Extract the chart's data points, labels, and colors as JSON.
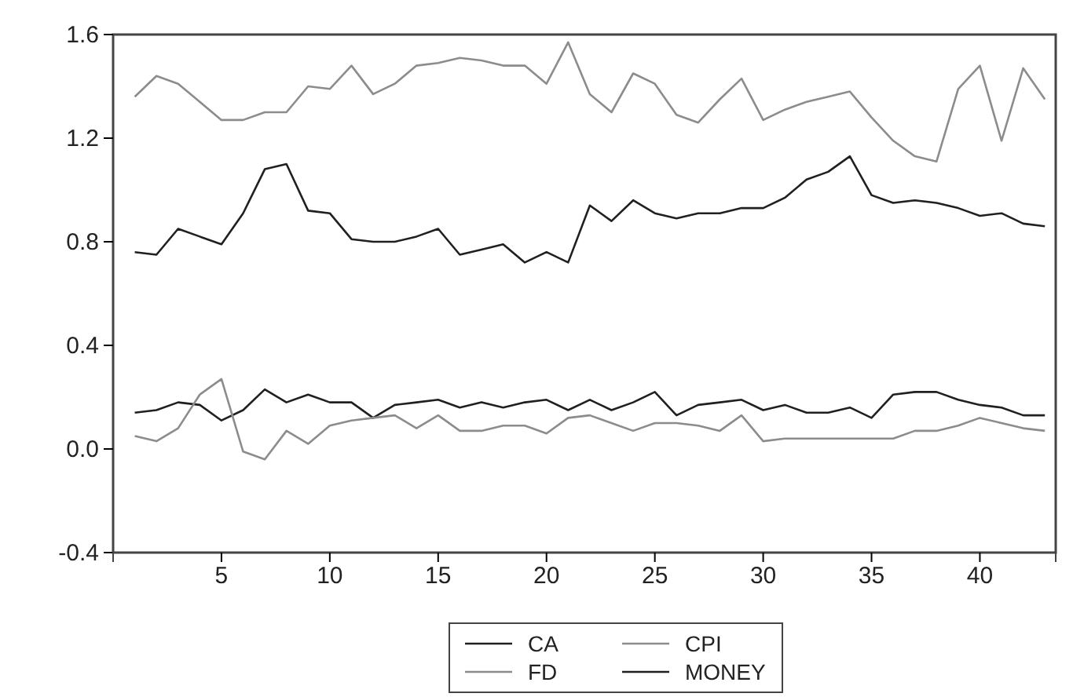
{
  "chart_data": {
    "type": "line",
    "x": [
      1,
      2,
      3,
      4,
      5,
      6,
      7,
      8,
      9,
      10,
      11,
      12,
      13,
      14,
      15,
      16,
      17,
      18,
      19,
      20,
      21,
      22,
      23,
      24,
      25,
      26,
      27,
      28,
      29,
      30,
      31,
      32,
      33,
      34,
      35,
      36,
      37,
      38,
      39,
      40,
      41,
      42,
      43
    ],
    "xlim": [
      0,
      43.5
    ],
    "xticks": [
      5,
      10,
      15,
      20,
      25,
      30,
      35,
      40
    ],
    "ylim": [
      -0.4,
      1.6
    ],
    "yticks": [
      {
        "value": -0.4,
        "label": "-0.4"
      },
      {
        "value": 0,
        "label": "0.0"
      },
      {
        "value": 0.4,
        "label": "0.4"
      },
      {
        "value": 0.8,
        "label": "0.8"
      },
      {
        "value": 1.2,
        "label": "1.2"
      },
      {
        "value": 1.6,
        "label": "1.6"
      }
    ],
    "legend": "bottom",
    "grid": false,
    "line_style": "solid",
    "marker": "none",
    "series": [
      {
        "name": "CA",
        "color": "#202020",
        "values": [
          0.14,
          0.15,
          0.18,
          0.17,
          0.11,
          0.15,
          0.23,
          0.18,
          0.21,
          0.18,
          0.18,
          0.12,
          0.17,
          0.18,
          0.19,
          0.16,
          0.18,
          0.16,
          0.18,
          0.19,
          0.15,
          0.19,
          0.15,
          0.18,
          0.22,
          0.13,
          0.17,
          0.18,
          0.19,
          0.15,
          0.17,
          0.14,
          0.14,
          0.16,
          0.12,
          0.21,
          0.22,
          0.22,
          0.19,
          0.17,
          0.16,
          0.13,
          0.13
        ]
      },
      {
        "name": "CPI",
        "color": "#8c8c8c",
        "values": [
          0.05,
          0.03,
          0.08,
          0.21,
          0.27,
          -0.01,
          -0.04,
          0.07,
          0.02,
          0.09,
          0.11,
          0.12,
          0.13,
          0.08,
          0.13,
          0.07,
          0.07,
          0.09,
          0.09,
          0.06,
          0.12,
          0.13,
          0.1,
          0.07,
          0.1,
          0.1,
          0.09,
          0.07,
          0.13,
          0.03,
          0.04,
          0.04,
          0.04,
          0.04,
          0.04,
          0.04,
          0.07,
          0.07,
          0.09,
          0.12,
          0.1,
          0.08,
          0.07
        ]
      },
      {
        "name": "FD",
        "color": "#8c8c8c",
        "values": [
          1.36,
          1.44,
          1.41,
          1.34,
          1.27,
          1.27,
          1.3,
          1.3,
          1.4,
          1.39,
          1.48,
          1.37,
          1.41,
          1.48,
          1.49,
          1.51,
          1.5,
          1.48,
          1.48,
          1.41,
          1.57,
          1.37,
          1.3,
          1.45,
          1.41,
          1.29,
          1.26,
          1.35,
          1.43,
          1.27,
          1.31,
          1.34,
          1.36,
          1.38,
          1.28,
          1.19,
          1.13,
          1.11,
          1.39,
          1.48,
          1.19,
          1.47,
          1.35
        ]
      },
      {
        "name": "MONEY",
        "color": "#202020",
        "values": [
          0.76,
          0.75,
          0.85,
          0.82,
          0.79,
          0.91,
          1.08,
          1.1,
          0.92,
          0.91,
          0.81,
          0.8,
          0.8,
          0.82,
          0.85,
          0.75,
          0.77,
          0.79,
          0.72,
          0.76,
          0.72,
          0.94,
          0.88,
          0.96,
          0.91,
          0.89,
          0.91,
          0.91,
          0.93,
          0.93,
          0.97,
          1.04,
          1.07,
          1.13,
          0.98,
          0.95,
          0.96,
          0.95,
          0.93,
          0.9,
          0.91,
          0.87,
          0.86
        ]
      }
    ]
  }
}
